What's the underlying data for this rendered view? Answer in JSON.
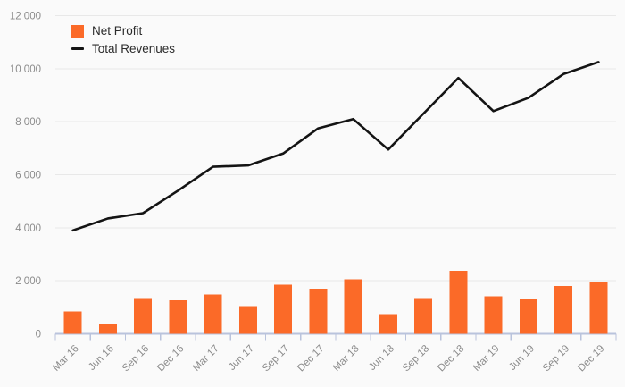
{
  "chart_data": {
    "type": "combo",
    "title": "",
    "xlabel": "",
    "ylabel": "",
    "categories": [
      "Mar 16",
      "Jun 16",
      "Sep 16",
      "Dec 16",
      "Mar 17",
      "Jun 17",
      "Sep 17",
      "Dec 17",
      "Mar 18",
      "Jun 18",
      "Sep 18",
      "Dec 18",
      "Mar 19",
      "Jun 19",
      "Sep 19",
      "Dec 19"
    ],
    "series": [
      {
        "name": "Net Profit",
        "type": "bar",
        "color": "#fb6a28",
        "values": [
          850,
          360,
          1350,
          1270,
          1490,
          1040,
          1860,
          1710,
          2050,
          740,
          1340,
          2380,
          1410,
          1290,
          1800,
          1940
        ]
      },
      {
        "name": "Total Revenues",
        "type": "line",
        "color": "#141414",
        "values": [
          3900,
          4350,
          4550,
          5400,
          6300,
          6350,
          6800,
          7750,
          8100,
          6950,
          8300,
          9650,
          8400,
          8900,
          9800,
          10250
        ]
      }
    ],
    "ylim": [
      0,
      12000
    ],
    "yticks": [
      0,
      2000,
      4000,
      6000,
      8000,
      10000,
      12000
    ],
    "ytick_labels": [
      "0",
      "2 000",
      "4 000",
      "6 000",
      "8 000",
      "10 000",
      "12 000"
    ],
    "grid": "horizontal",
    "legend_position": "top-left",
    "colors": {
      "background": "#fafafa",
      "gridline": "#e8e8e8",
      "axis": "#b9c3dc",
      "tick_label": "#8b8b8b",
      "legend_text": "#2b2b2b"
    }
  }
}
